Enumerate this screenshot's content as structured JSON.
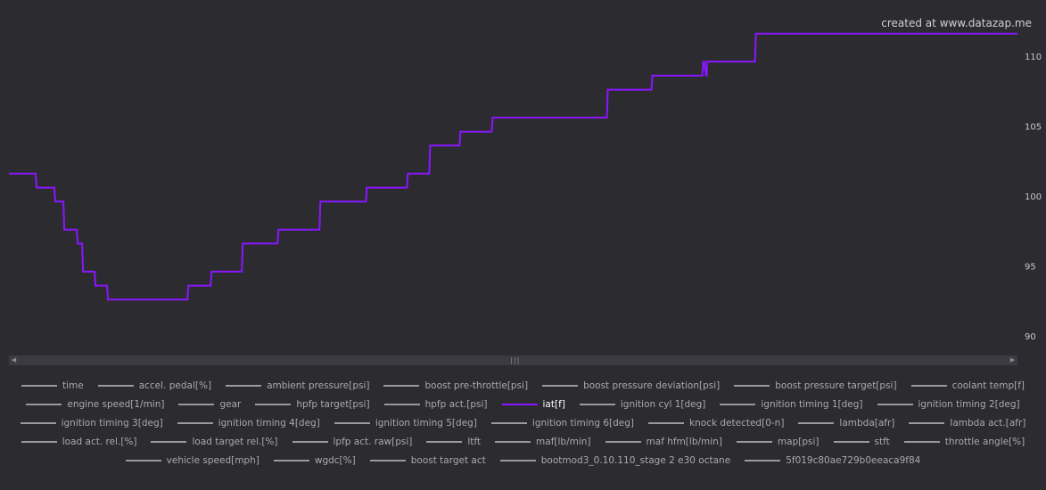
{
  "watermark": "created at www.datazap.me",
  "chart_data": {
    "type": "line",
    "title": "",
    "xlabel": "",
    "ylabel": "",
    "ylim": [
      88.8,
      114.0
    ],
    "yticks": [
      90,
      95,
      100,
      105,
      110
    ],
    "grid": false,
    "legend_position": "bottom",
    "series": [
      {
        "name": "iat[f]",
        "color": "#8a16ff",
        "x": [
          0,
          30,
          31,
          51,
          52,
          61,
          62,
          64,
          65,
          76,
          77,
          82,
          83,
          85,
          86,
          96,
          97,
          110,
          111,
          200,
          201,
          226,
          227,
          261,
          262,
          301,
          302,
          348,
          349,
          400,
          401,
          446,
          447,
          471,
          472,
          505,
          506,
          541,
          542,
          670,
          671,
          720,
          721,
          776,
          777,
          778,
          779,
          781,
          782,
          782,
          783,
          836,
          837,
          1130
        ],
        "y": [
          101.6,
          101.6,
          100.6,
          100.6,
          99.6,
          99.6,
          97.6,
          97.6,
          97.6,
          97.6,
          96.6,
          96.6,
          94.6,
          94.6,
          94.6,
          94.6,
          93.6,
          93.6,
          92.6,
          92.6,
          93.6,
          93.6,
          94.6,
          94.6,
          96.6,
          96.6,
          97.6,
          97.6,
          99.6,
          99.6,
          100.6,
          100.6,
          101.6,
          101.6,
          103.6,
          103.6,
          104.6,
          104.6,
          105.6,
          105.6,
          107.6,
          107.6,
          108.6,
          108.6,
          108.6,
          109.6,
          109.6,
          108.6,
          108.6,
          109.6,
          109.6,
          109.6,
          111.6,
          111.6
        ]
      }
    ]
  },
  "legend": {
    "rows": [
      [
        {
          "label": "time"
        },
        {
          "label": "accel. pedal[%]"
        },
        {
          "label": "ambient pressure[psi]"
        },
        {
          "label": "boost pre-throttle[psi]"
        },
        {
          "label": "boost pressure deviation[psi]"
        },
        {
          "label": "boost pressure target[psi]"
        },
        {
          "label": "coolant temp[f]"
        }
      ],
      [
        {
          "label": "engine speed[1/min]"
        },
        {
          "label": "gear"
        },
        {
          "label": "hpfp target[psi]"
        },
        {
          "label": "hpfp act.[psi]"
        },
        {
          "label": "iat[f]",
          "active": true
        },
        {
          "label": "ignition cyl 1[deg]"
        },
        {
          "label": "ignition timing 1[deg]"
        },
        {
          "label": "ignition timing 2[deg]"
        }
      ],
      [
        {
          "label": "ignition timing 3[deg]"
        },
        {
          "label": "ignition timing 4[deg]"
        },
        {
          "label": "ignition timing 5[deg]"
        },
        {
          "label": "ignition timing 6[deg]"
        },
        {
          "label": "knock detected[0-n]"
        },
        {
          "label": "lambda[afr]"
        },
        {
          "label": "lambda act.[afr]"
        }
      ],
      [
        {
          "label": "load act. rel.[%]"
        },
        {
          "label": "load target rel.[%]"
        },
        {
          "label": "lpfp act. raw[psi]"
        },
        {
          "label": "ltft"
        },
        {
          "label": "maf[lb/min]"
        },
        {
          "label": "maf hfm[lb/min]"
        },
        {
          "label": "map[psi]"
        },
        {
          "label": "stft"
        },
        {
          "label": "throttle angle[%]"
        }
      ],
      [
        {
          "label": "vehicle speed[mph]"
        },
        {
          "label": "wgdc[%]"
        },
        {
          "label": "boost target act"
        },
        {
          "label": "bootmod3_0.10.110_stage 2 e30 octane"
        },
        {
          "label": "5f019c80ae729b0eeaca9f84"
        }
      ]
    ]
  },
  "scrollbar": {
    "left_arrow": "◀",
    "right_arrow": "▶",
    "grip": "|||"
  }
}
